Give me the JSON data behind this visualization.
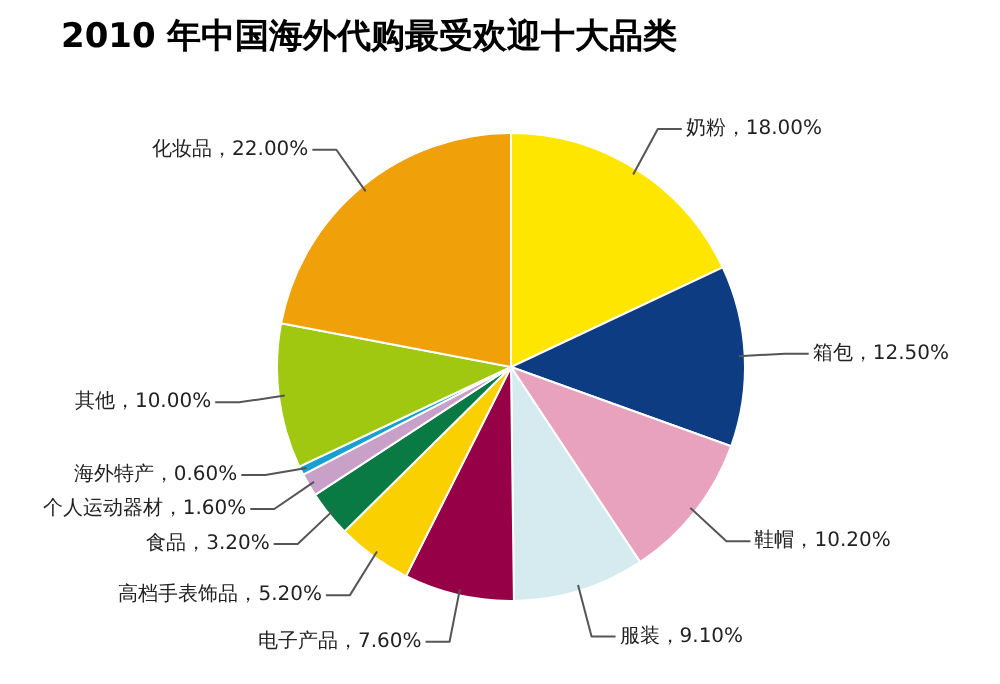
{
  "chart_data": {
    "type": "pie",
    "title": "2010 年中国海外代购最受欢迎十大品类",
    "categories": [
      "奶粉",
      "箱包",
      "鞋帽",
      "服装",
      "电子产品",
      "高档手表饰品",
      "食品",
      "个人运动器材",
      "海外特产",
      "其他",
      "化妆品"
    ],
    "values": [
      18.0,
      12.5,
      10.2,
      9.1,
      7.6,
      5.2,
      3.2,
      1.6,
      0.6,
      10.0,
      22.0
    ],
    "colors": [
      "#ffe600",
      "#0d3c82",
      "#e8a2bd",
      "#d6ebf0",
      "#960046",
      "#fad000",
      "#0a7a44",
      "#c8a0c8",
      "#1aa0d0",
      "#a0c810",
      "#f0a008"
    ],
    "value_labels": [
      "18.00%",
      "12.50%",
      "10.20%",
      "9.10%",
      "7.60%",
      "5.20%",
      "3.20%",
      "1.60%",
      "0.60%",
      "10.00%",
      "22.00%"
    ]
  }
}
